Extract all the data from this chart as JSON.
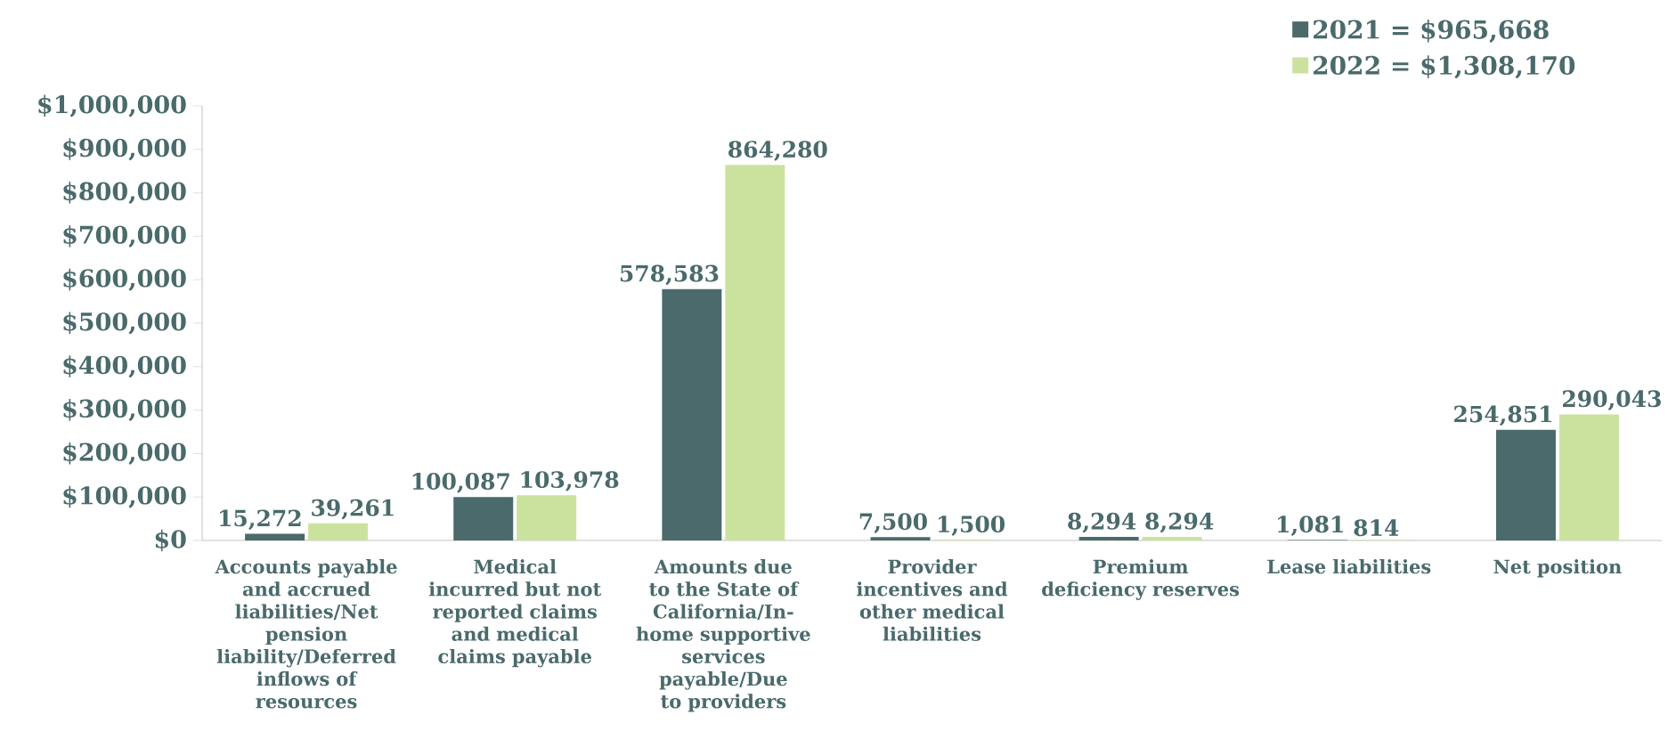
{
  "chart_data": {
    "type": "bar",
    "categories": [
      "Accounts payable and accrued liabilities/Net pension liability/Deferred inflows of resources",
      "Medical incurred but not reported claims and medical claims payable",
      "Amounts due to the State of California/In-home supportive services payable/Due to providers",
      "Provider incentives and other medical liabilities",
      "Premium deficiency reserves",
      "Lease liabilities",
      "Net position"
    ],
    "series": [
      {
        "name": "2021 = $965,668",
        "color": "#4a6a6b",
        "values": [
          15272,
          100087,
          578583,
          7500,
          8294,
          1081,
          254851
        ],
        "value_labels": [
          "15,272",
          "100,087",
          "578,583",
          "7,500",
          "8,294",
          "1,081",
          "254,851"
        ]
      },
      {
        "name": "2022 = $1,308,170",
        "color": "#cbe29e",
        "values": [
          39261,
          103978,
          864280,
          1500,
          8294,
          814,
          290043
        ],
        "value_labels": [
          "39,261",
          "103,978",
          "864,280",
          "1,500",
          "8,294",
          "814",
          "290,043"
        ]
      }
    ],
    "ylim": [
      0,
      1000000
    ],
    "yticks": [
      {
        "value": 0,
        "label": "$0"
      },
      {
        "value": 100000,
        "label": "$100,000"
      },
      {
        "value": 200000,
        "label": "$200,000"
      },
      {
        "value": 300000,
        "label": "$300,000"
      },
      {
        "value": 400000,
        "label": "$400,000"
      },
      {
        "value": 500000,
        "label": "$500,000"
      },
      {
        "value": 600000,
        "label": "$600,000"
      },
      {
        "value": 700000,
        "label": "$700,000"
      },
      {
        "value": 800000,
        "label": "$800,000"
      },
      {
        "value": 900000,
        "label": "$900,000"
      },
      {
        "value": 1000000,
        "label": "$1,000,000"
      }
    ],
    "legend": "top right"
  }
}
